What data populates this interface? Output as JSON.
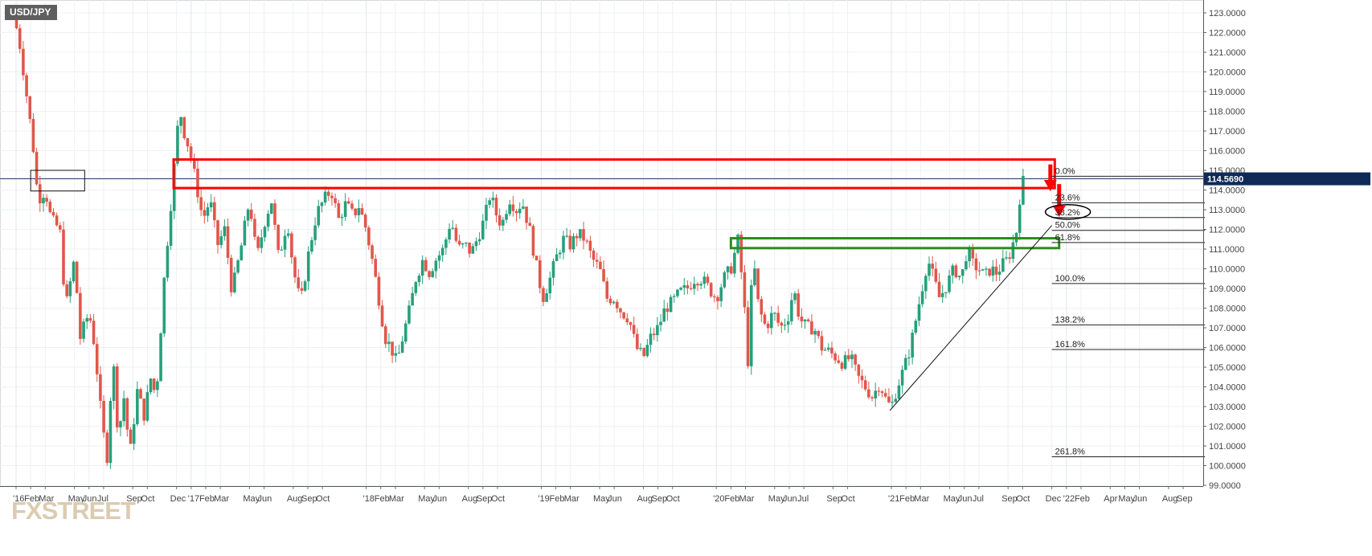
{
  "symbol": "USD/JPY",
  "watermark": "FXSTREET",
  "colors": {
    "bull": "#26a07a",
    "bear": "#e0574a",
    "grid": "#eef0f3",
    "current_price_tag": "#0f2a57",
    "resistance_box": "#ff0000",
    "support_box": "#2e8b1e"
  },
  "chart_data": {
    "type": "candlestick",
    "timeframe": "weekly",
    "y_axis": {
      "ticks": [
        "123.0000",
        "122.0000",
        "121.0000",
        "120.0000",
        "119.0000",
        "118.0000",
        "117.0000",
        "116.0000",
        "115.0000",
        "114.0000",
        "113.0000",
        "112.0000",
        "111.0000",
        "110.0000",
        "109.0000",
        "108.0000",
        "107.0000",
        "106.0000",
        "105.0000",
        "104.0000",
        "103.0000",
        "102.0000",
        "101.0000",
        "100.0000",
        "99.0000"
      ],
      "ylim": [
        98.9,
        123.5
      ]
    },
    "x_axis": {
      "ticks": [
        {
          "label": "'16",
          "t": 0.0
        },
        {
          "label": "Feb",
          "t": 1.0
        },
        {
          "label": "Mar",
          "t": 2.0
        },
        {
          "label": "May",
          "t": 4.0
        },
        {
          "label": "Jun",
          "t": 5.0
        },
        {
          "label": "Jul",
          "t": 6.0
        },
        {
          "label": "Sep",
          "t": 8.0
        },
        {
          "label": "Oct",
          "t": 9.0
        },
        {
          "label": "Dec",
          "t": 11.0
        },
        {
          "label": "'17",
          "t": 12.0
        },
        {
          "label": "Feb",
          "t": 13.0
        },
        {
          "label": "Mar",
          "t": 14.0
        },
        {
          "label": "May",
          "t": 16.0
        },
        {
          "label": "Jun",
          "t": 17.0
        },
        {
          "label": "Aug",
          "t": 19.0
        },
        {
          "label": "Sep",
          "t": 20.0
        },
        {
          "label": "Oct",
          "t": 21.0
        },
        {
          "label": "'18",
          "t": 24.0
        },
        {
          "label": "Feb",
          "t": 25.0
        },
        {
          "label": "Mar",
          "t": 26.0
        },
        {
          "label": "May",
          "t": 28.0
        },
        {
          "label": "Jun",
          "t": 29.0
        },
        {
          "label": "Aug",
          "t": 31.0
        },
        {
          "label": "Sep",
          "t": 32.0
        },
        {
          "label": "Oct",
          "t": 33.0
        },
        {
          "label": "'19",
          "t": 36.0
        },
        {
          "label": "Feb",
          "t": 37.0
        },
        {
          "label": "Mar",
          "t": 38.0
        },
        {
          "label": "May",
          "t": 40.0
        },
        {
          "label": "Jun",
          "t": 41.0
        },
        {
          "label": "Aug",
          "t": 43.0
        },
        {
          "label": "Sep",
          "t": 44.0
        },
        {
          "label": "Oct",
          "t": 45.0
        },
        {
          "label": "'20",
          "t": 48.0
        },
        {
          "label": "Feb",
          "t": 49.0
        },
        {
          "label": "Mar",
          "t": 50.0
        },
        {
          "label": "May",
          "t": 52.0
        },
        {
          "label": "Jun",
          "t": 53.0
        },
        {
          "label": "Jul",
          "t": 54.0
        },
        {
          "label": "Sep",
          "t": 56.0
        },
        {
          "label": "Oct",
          "t": 57.0
        },
        {
          "label": "'21",
          "t": 60.0
        },
        {
          "label": "Feb",
          "t": 61.0
        },
        {
          "label": "Mar",
          "t": 62.0
        },
        {
          "label": "May",
          "t": 64.0
        },
        {
          "label": "Jun",
          "t": 65.0
        },
        {
          "label": "Jul",
          "t": 66.0
        },
        {
          "label": "Sep",
          "t": 68.0
        },
        {
          "label": "Oct",
          "t": 69.0
        },
        {
          "label": "Dec",
          "t": 71.0
        },
        {
          "label": "'22",
          "t": 72.0
        },
        {
          "label": "Feb",
          "t": 73.0
        },
        {
          "label": "Apr",
          "t": 75.0
        },
        {
          "label": "May",
          "t": 76.0
        },
        {
          "label": "Jun",
          "t": 77.0
        },
        {
          "label": "Aug",
          "t": 79.0
        },
        {
          "label": "Sep",
          "t": 80.0
        }
      ]
    },
    "close_path": [
      {
        "t": -0.2,
        "v": 123.1
      },
      {
        "t": 0.3,
        "v": 121.2
      },
      {
        "t": 0.9,
        "v": 117.8
      },
      {
        "t": 1.2,
        "v": 116.0
      },
      {
        "t": 1.5,
        "v": 113.5
      },
      {
        "t": 2.0,
        "v": 114.0
      },
      {
        "t": 2.4,
        "v": 112.5
      },
      {
        "t": 3.0,
        "v": 112.0
      },
      {
        "t": 3.4,
        "v": 108.0
      },
      {
        "t": 4.0,
        "v": 110.5
      },
      {
        "t": 4.4,
        "v": 106.5
      },
      {
        "t": 5.0,
        "v": 107.8
      },
      {
        "t": 5.4,
        "v": 106.0
      },
      {
        "t": 5.9,
        "v": 102.0
      },
      {
        "t": 6.3,
        "v": 100.2
      },
      {
        "t": 6.6,
        "v": 106.0
      },
      {
        "t": 7.0,
        "v": 101.5
      },
      {
        "t": 7.4,
        "v": 103.5
      },
      {
        "t": 7.8,
        "v": 100.5
      },
      {
        "t": 8.3,
        "v": 103.8
      },
      {
        "t": 8.8,
        "v": 102.5
      },
      {
        "t": 9.2,
        "v": 104.5
      },
      {
        "t": 9.6,
        "v": 103.5
      },
      {
        "t": 10.2,
        "v": 110.0
      },
      {
        "t": 10.7,
        "v": 114.0
      },
      {
        "t": 11.2,
        "v": 118.2
      },
      {
        "t": 11.5,
        "v": 117.0
      },
      {
        "t": 11.9,
        "v": 116.0
      },
      {
        "t": 12.3,
        "v": 114.5
      },
      {
        "t": 12.8,
        "v": 112.5
      },
      {
        "t": 13.3,
        "v": 113.5
      },
      {
        "t": 13.8,
        "v": 111.2
      },
      {
        "t": 14.3,
        "v": 112.0
      },
      {
        "t": 14.8,
        "v": 108.8
      },
      {
        "t": 15.4,
        "v": 111.0
      },
      {
        "t": 16.0,
        "v": 113.5
      },
      {
        "t": 16.5,
        "v": 110.5
      },
      {
        "t": 17.0,
        "v": 112.3
      },
      {
        "t": 17.5,
        "v": 113.5
      },
      {
        "t": 18.0,
        "v": 110.5
      },
      {
        "t": 18.6,
        "v": 112.5
      },
      {
        "t": 19.0,
        "v": 110.0
      },
      {
        "t": 19.5,
        "v": 108.2
      },
      {
        "t": 20.1,
        "v": 111.0
      },
      {
        "t": 20.6,
        "v": 112.8
      },
      {
        "t": 21.1,
        "v": 113.5
      },
      {
        "t": 21.6,
        "v": 114.0
      },
      {
        "t": 22.1,
        "v": 112.5
      },
      {
        "t": 22.6,
        "v": 113.3
      },
      {
        "t": 23.1,
        "v": 112.7
      },
      {
        "t": 23.5,
        "v": 113.2
      },
      {
        "t": 24.0,
        "v": 112.0
      },
      {
        "t": 24.4,
        "v": 110.5
      },
      {
        "t": 24.8,
        "v": 108.8
      },
      {
        "t": 25.3,
        "v": 106.5
      },
      {
        "t": 25.7,
        "v": 106.0
      },
      {
        "t": 26.1,
        "v": 105.2
      },
      {
        "t": 26.5,
        "v": 106.5
      },
      {
        "t": 27.0,
        "v": 108.0
      },
      {
        "t": 27.4,
        "v": 109.5
      },
      {
        "t": 27.9,
        "v": 110.5
      },
      {
        "t": 28.3,
        "v": 109.8
      },
      {
        "t": 28.8,
        "v": 110.5
      },
      {
        "t": 29.3,
        "v": 111.0
      },
      {
        "t": 29.8,
        "v": 112.5
      },
      {
        "t": 30.3,
        "v": 111.0
      },
      {
        "t": 30.8,
        "v": 111.2
      },
      {
        "t": 31.2,
        "v": 110.8
      },
      {
        "t": 31.6,
        "v": 111.5
      },
      {
        "t": 32.1,
        "v": 112.5
      },
      {
        "t": 32.5,
        "v": 113.8
      },
      {
        "t": 32.9,
        "v": 112.8
      },
      {
        "t": 33.3,
        "v": 112.2
      },
      {
        "t": 33.8,
        "v": 113.6
      },
      {
        "t": 34.3,
        "v": 113.0
      },
      {
        "t": 34.7,
        "v": 113.4
      },
      {
        "t": 35.2,
        "v": 112.0
      },
      {
        "t": 35.7,
        "v": 110.0
      },
      {
        "t": 36.1,
        "v": 108.5
      },
      {
        "t": 36.6,
        "v": 109.5
      },
      {
        "t": 37.0,
        "v": 110.5
      },
      {
        "t": 37.5,
        "v": 111.5
      },
      {
        "t": 38.0,
        "v": 111.2
      },
      {
        "t": 38.5,
        "v": 111.8
      },
      {
        "t": 39.0,
        "v": 111.5
      },
      {
        "t": 39.5,
        "v": 110.5
      },
      {
        "t": 40.0,
        "v": 110.0
      },
      {
        "t": 40.5,
        "v": 108.5
      },
      {
        "t": 41.0,
        "v": 108.5
      },
      {
        "t": 41.5,
        "v": 107.8
      },
      {
        "t": 42.0,
        "v": 107.5
      },
      {
        "t": 42.5,
        "v": 106.0
      },
      {
        "t": 43.0,
        "v": 105.5
      },
      {
        "t": 43.5,
        "v": 106.5
      },
      {
        "t": 44.0,
        "v": 107.0
      },
      {
        "t": 44.5,
        "v": 108.0
      },
      {
        "t": 45.0,
        "v": 108.3
      },
      {
        "t": 45.5,
        "v": 108.8
      },
      {
        "t": 46.0,
        "v": 109.0
      },
      {
        "t": 46.5,
        "v": 109.5
      },
      {
        "t": 47.0,
        "v": 109.5
      },
      {
        "t": 47.5,
        "v": 109.0
      },
      {
        "t": 48.0,
        "v": 108.5
      },
      {
        "t": 48.5,
        "v": 109.5
      },
      {
        "t": 49.0,
        "v": 110.0
      },
      {
        "t": 49.5,
        "v": 111.5
      },
      {
        "t": 49.9,
        "v": 108.3
      },
      {
        "t": 50.2,
        "v": 105.0
      },
      {
        "t": 50.5,
        "v": 110.8
      },
      {
        "t": 50.9,
        "v": 108.0
      },
      {
        "t": 51.4,
        "v": 107.0
      },
      {
        "t": 51.9,
        "v": 107.8
      },
      {
        "t": 52.4,
        "v": 107.0
      },
      {
        "t": 52.9,
        "v": 107.5
      },
      {
        "t": 53.3,
        "v": 109.0
      },
      {
        "t": 53.7,
        "v": 107.5
      },
      {
        "t": 54.2,
        "v": 107.0
      },
      {
        "t": 54.7,
        "v": 107.0
      },
      {
        "t": 55.2,
        "v": 106.0
      },
      {
        "t": 55.7,
        "v": 105.8
      },
      {
        "t": 56.2,
        "v": 105.5
      },
      {
        "t": 56.7,
        "v": 105.2
      },
      {
        "t": 57.2,
        "v": 105.5
      },
      {
        "t": 57.7,
        "v": 104.5
      },
      {
        "t": 58.2,
        "v": 104.0
      },
      {
        "t": 58.7,
        "v": 103.5
      },
      {
        "t": 59.2,
        "v": 104.2
      },
      {
        "t": 59.7,
        "v": 103.2
      },
      {
        "t": 60.0,
        "v": 103.0
      },
      {
        "t": 60.4,
        "v": 104.0
      },
      {
        "t": 60.9,
        "v": 105.0
      },
      {
        "t": 61.3,
        "v": 106.0
      },
      {
        "t": 61.7,
        "v": 107.5
      },
      {
        "t": 62.1,
        "v": 109.0
      },
      {
        "t": 62.5,
        "v": 110.5
      },
      {
        "t": 62.9,
        "v": 109.5
      },
      {
        "t": 63.3,
        "v": 108.5
      },
      {
        "t": 63.8,
        "v": 109.2
      },
      {
        "t": 64.3,
        "v": 110.0
      },
      {
        "t": 64.8,
        "v": 109.5
      },
      {
        "t": 65.2,
        "v": 111.0
      },
      {
        "t": 65.6,
        "v": 110.2
      },
      {
        "t": 66.0,
        "v": 110.0
      },
      {
        "t": 66.4,
        "v": 109.6
      },
      {
        "t": 66.8,
        "v": 110.0
      },
      {
        "t": 67.2,
        "v": 109.8
      },
      {
        "t": 67.6,
        "v": 110.2
      },
      {
        "t": 68.0,
        "v": 110.5
      },
      {
        "t": 68.3,
        "v": 111.2
      },
      {
        "t": 68.6,
        "v": 112.0
      },
      {
        "t": 68.85,
        "v": 114.0
      },
      {
        "t": 69.1,
        "v": 114.6
      }
    ],
    "last_price": {
      "label": "114.5690",
      "value": 114.569
    },
    "fib_levels": [
      {
        "label": "0.0%",
        "value": 114.7
      },
      {
        "label": "23.6%",
        "value": 113.35
      },
      {
        "label": "38.2%",
        "value": 112.6,
        "circled": true
      },
      {
        "label": "50.0%",
        "value": 111.95
      },
      {
        "label": "61.8%",
        "value": 111.33
      },
      {
        "label": "100.0%",
        "value": 109.25
      },
      {
        "label": "138.2%",
        "value": 107.15
      },
      {
        "label": "161.8%",
        "value": 105.9
      },
      {
        "label": "261.8%",
        "value": 100.45
      }
    ],
    "fib_range_t": [
      71.0,
      81.5
    ],
    "annotations": {
      "resistance_box": {
        "t0": 10.8,
        "t1": 71.2,
        "v0": 114.1,
        "v1": 115.55
      },
      "support_box": {
        "t0": 49.0,
        "t1": 71.5,
        "v0": 111.05,
        "v1": 111.55
      },
      "left_box": {
        "t0": 1.0,
        "t1": 4.7,
        "v0": 113.95,
        "v1": 115.0
      },
      "trendline": {
        "t0": 59.9,
        "v0": 102.8,
        "t1": 71.0,
        "v1": 112.2
      },
      "arrows": [
        {
          "t": 70.9,
          "v_from": 115.3,
          "v_to": 114.1
        },
        {
          "t": 71.5,
          "v_from": 114.3,
          "v_to": 112.8
        }
      ],
      "current_price_line": 114.569
    }
  }
}
